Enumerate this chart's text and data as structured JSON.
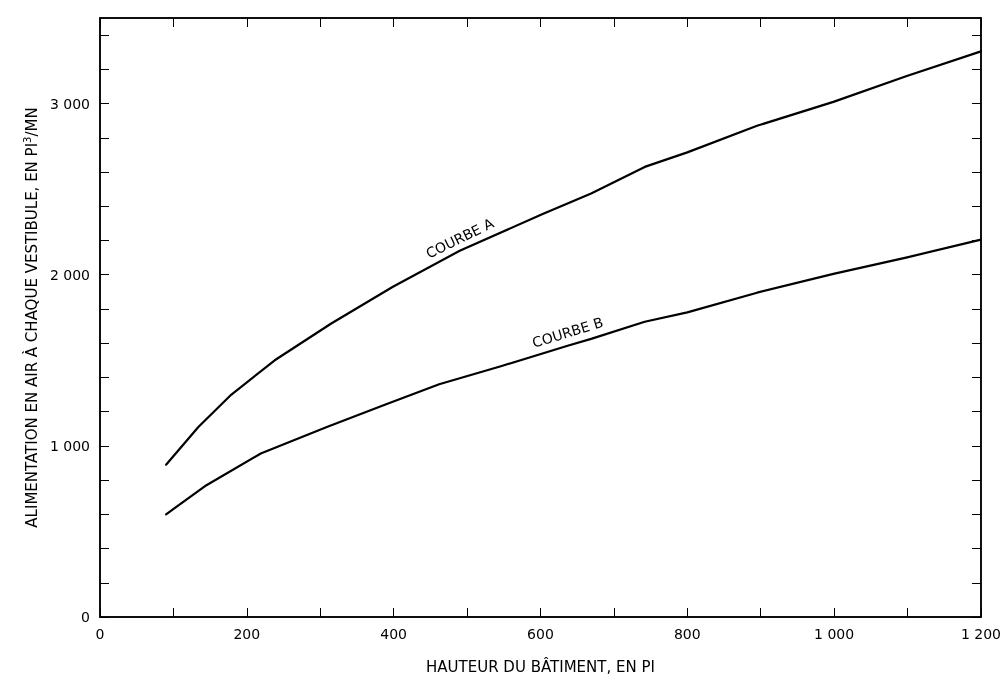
{
  "chart_data": {
    "type": "line",
    "xlabel": "HAUTEUR DU BÂTIMENT, EN PI",
    "ylabel": "ALIMENTATION EN AIR À CHAQUE VESTIBULE, EN PI$^{3}$/MN",
    "xlim": [
      0,
      1200
    ],
    "ylim": [
      0,
      3500
    ],
    "xticks": [
      0,
      {
        "value": 100,
        "label": null
      },
      200,
      {
        "value": 300,
        "label": null
      },
      400,
      {
        "value": 500,
        "label": null
      },
      600,
      {
        "value": 700,
        "label": null
      },
      800,
      {
        "value": 900,
        "label": null
      },
      {
        "value": 1000,
        "label": "1 000"
      },
      {
        "value": 1100,
        "label": null
      },
      {
        "value": 1200,
        "label": "1 200"
      }
    ],
    "yticks": [
      0,
      {
        "value": 200,
        "label": null
      },
      {
        "value": 400,
        "label": null
      },
      {
        "value": 600,
        "label": null
      },
      {
        "value": 800,
        "label": null
      },
      {
        "value": 1000,
        "label": "1 000"
      },
      {
        "value": 1200,
        "label": null
      },
      {
        "value": 1400,
        "label": null
      },
      {
        "value": 1600,
        "label": null
      },
      {
        "value": 1800,
        "label": null
      },
      {
        "value": 2000,
        "label": "2 000"
      },
      {
        "value": 2200,
        "label": null
      },
      {
        "value": 2400,
        "label": null
      },
      {
        "value": 2600,
        "label": null
      },
      {
        "value": 2800,
        "label": null
      },
      {
        "value": 3000,
        "label": "3 000"
      },
      {
        "value": 3200,
        "label": null
      },
      {
        "value": 3400,
        "label": null
      }
    ],
    "grid": false,
    "marker": "none",
    "series": [
      {
        "name": "COURBE A",
        "color": "#000000",
        "x": [
          90,
          134,
          179,
          238,
          315,
          399,
          490,
          603,
          669,
          742,
          800,
          895,
          999,
          1098,
          1200
        ],
        "values": [
          890,
          1110,
          1300,
          1500,
          1715,
          1930,
          2140,
          2355,
          2475,
          2630,
          2715,
          2870,
          3010,
          3160,
          3305
        ]
      },
      {
        "name": "COURBE B",
        "color": "#000000",
        "x": [
          90,
          145,
          219,
          309,
          388,
          462,
          546,
          637,
          669,
          742,
          800,
          895,
          999,
          1098,
          1200
        ],
        "values": [
          600,
          770,
          955,
          1110,
          1240,
          1360,
          1465,
          1585,
          1625,
          1725,
          1780,
          1895,
          2005,
          2100,
          2205
        ]
      }
    ]
  }
}
